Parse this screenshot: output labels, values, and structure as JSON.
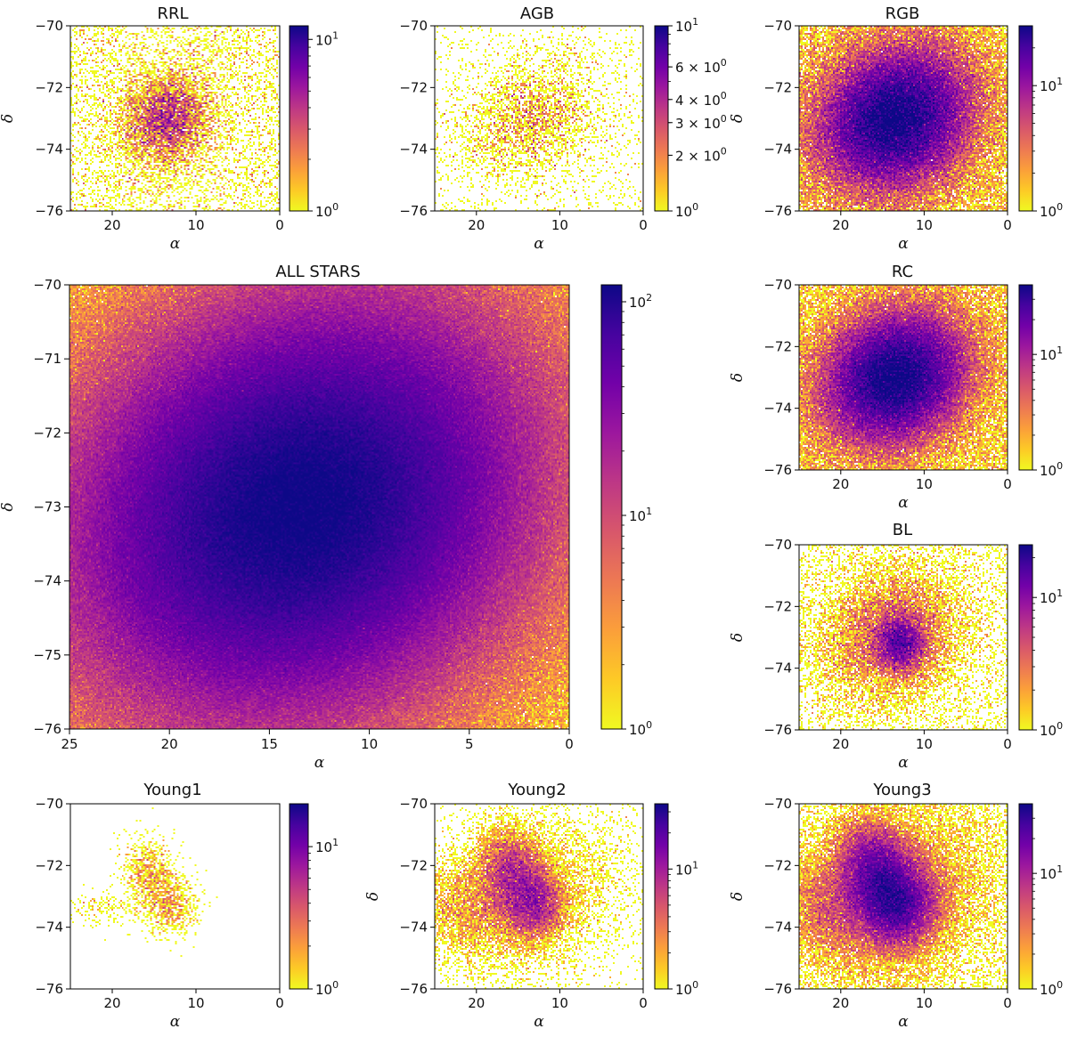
{
  "figure": {
    "xlabel": "α",
    "ylabel": "δ",
    "colormap": [
      "#0d0887",
      "#46039f",
      "#7201a8",
      "#9c179e",
      "#bd3786",
      "#d8576b",
      "#ed7953",
      "#fb9f3a",
      "#fdca26",
      "#f0f921"
    ]
  },
  "chart_data": [
    {
      "id": "rrl",
      "type": "heatmap",
      "title": "RRL",
      "xlim": [
        25,
        0
      ],
      "ylim": [
        -76,
        -70
      ],
      "xticks": [
        {
          "v": 20,
          "label": "20"
        },
        {
          "v": 10,
          "label": "10"
        },
        {
          "v": 0,
          "label": "0"
        }
      ],
      "yticks": [
        {
          "v": -70,
          "label": "−70"
        },
        {
          "v": -72,
          "label": "−72"
        },
        {
          "v": -74,
          "label": "−74"
        },
        {
          "v": -76,
          "label": "−76"
        }
      ],
      "show_ylabel": true,
      "colorbar": {
        "min": 1,
        "max": 12,
        "ticks": [
          {
            "v": 1,
            "label": "10",
            "exp": "0"
          },
          {
            "v": 10,
            "label": "10",
            "exp": "1"
          }
        ]
      },
      "density": {
        "components": [
          {
            "x": 13.5,
            "y": -73.0,
            "sx": 3.0,
            "sy": 0.8,
            "theta": -0.3,
            "amp": 4
          }
        ],
        "bg": 0.35,
        "max": 12
      }
    },
    {
      "id": "agb",
      "type": "heatmap",
      "title": "AGB",
      "xlim": [
        25,
        0
      ],
      "ylim": [
        -76,
        -70
      ],
      "xticks": [
        {
          "v": 20,
          "label": "20"
        },
        {
          "v": 10,
          "label": "10"
        },
        {
          "v": 0,
          "label": "0"
        }
      ],
      "yticks": [
        {
          "v": -70,
          "label": "−70"
        },
        {
          "v": -72,
          "label": "−72"
        },
        {
          "v": -74,
          "label": "−74"
        },
        {
          "v": -76,
          "label": "−76"
        }
      ],
      "show_ylabel": false,
      "colorbar": {
        "min": 1,
        "max": 10,
        "ticks": [
          {
            "v": 1,
            "label": "10",
            "exp": "0"
          },
          {
            "v": 2,
            "label": "2 × 10",
            "exp": "0"
          },
          {
            "v": 3,
            "label": "3 × 10",
            "exp": "0"
          },
          {
            "v": 4,
            "label": "4 × 10",
            "exp": "0"
          },
          {
            "v": 6,
            "label": "6 × 10",
            "exp": "0"
          },
          {
            "v": 10,
            "label": "10",
            "exp": "1"
          }
        ]
      },
      "density": {
        "components": [
          {
            "x": 13.5,
            "y": -73.0,
            "sx": 4.5,
            "sy": 1.0,
            "theta": -0.3,
            "amp": 1.2
          }
        ],
        "bg": 0.1,
        "max": 10
      }
    },
    {
      "id": "rgb",
      "type": "heatmap",
      "title": "RGB",
      "xlim": [
        25,
        0
      ],
      "ylim": [
        -76,
        -70
      ],
      "xticks": [
        {
          "v": 20,
          "label": "20"
        },
        {
          "v": 10,
          "label": "10"
        },
        {
          "v": 0,
          "label": "0"
        }
      ],
      "yticks": [
        {
          "v": -70,
          "label": "−70"
        },
        {
          "v": -72,
          "label": "−72"
        },
        {
          "v": -74,
          "label": "−74"
        },
        {
          "v": -76,
          "label": "−76"
        }
      ],
      "show_ylabel": true,
      "colorbar": {
        "min": 1,
        "max": 30,
        "ticks": [
          {
            "v": 1,
            "label": "10",
            "exp": "0"
          },
          {
            "v": 10,
            "label": "10",
            "exp": "1"
          }
        ]
      },
      "density": {
        "components": [
          {
            "x": 13.5,
            "y": -73.0,
            "sx": 5.0,
            "sy": 1.2,
            "theta": -0.3,
            "amp": 30
          }
        ],
        "bg": 1.4,
        "max": 30
      }
    },
    {
      "id": "all",
      "type": "heatmap",
      "title": "ALL STARS",
      "xlim": [
        25,
        0
      ],
      "ylim": [
        -76,
        -70
      ],
      "xticks": [
        {
          "v": 25,
          "label": "25"
        },
        {
          "v": 20,
          "label": "20"
        },
        {
          "v": 15,
          "label": "15"
        },
        {
          "v": 10,
          "label": "10"
        },
        {
          "v": 5,
          "label": "5"
        },
        {
          "v": 0,
          "label": "0"
        }
      ],
      "yticks": [
        {
          "v": -70,
          "label": "−70"
        },
        {
          "v": -71,
          "label": "−71"
        },
        {
          "v": -72,
          "label": "−72"
        },
        {
          "v": -73,
          "label": "−73"
        },
        {
          "v": -74,
          "label": "−74"
        },
        {
          "v": -75,
          "label": "−75"
        },
        {
          "v": -76,
          "label": "−76"
        }
      ],
      "show_ylabel": true,
      "colorbar": {
        "min": 1,
        "max": 120,
        "ticks": [
          {
            "v": 1,
            "label": "10",
            "exp": "0"
          },
          {
            "v": 10,
            "label": "10",
            "exp": "1"
          },
          {
            "v": 100,
            "label": "10",
            "exp": "2"
          }
        ]
      },
      "density": {
        "components": [
          {
            "x": 13.5,
            "y": -73.0,
            "sx": 6.0,
            "sy": 1.4,
            "theta": -0.3,
            "amp": 120
          }
        ],
        "bg": 2.0,
        "max": 120
      }
    },
    {
      "id": "rc",
      "type": "heatmap",
      "title": "RC",
      "xlim": [
        25,
        0
      ],
      "ylim": [
        -76,
        -70
      ],
      "xticks": [
        {
          "v": 20,
          "label": "20"
        },
        {
          "v": 10,
          "label": "10"
        },
        {
          "v": 0,
          "label": "0"
        }
      ],
      "yticks": [
        {
          "v": -70,
          "label": "−70"
        },
        {
          "v": -72,
          "label": "−72"
        },
        {
          "v": -74,
          "label": "−74"
        },
        {
          "v": -76,
          "label": "−76"
        }
      ],
      "show_ylabel": true,
      "colorbar": {
        "min": 1,
        "max": 40,
        "ticks": [
          {
            "v": 1,
            "label": "10",
            "exp": "0"
          },
          {
            "v": 10,
            "label": "10",
            "exp": "1"
          }
        ]
      },
      "density": {
        "components": [
          {
            "x": 13.5,
            "y": -73.0,
            "sx": 4.6,
            "sy": 1.1,
            "theta": -0.3,
            "amp": 40
          }
        ],
        "bg": 1.5,
        "max": 40
      }
    },
    {
      "id": "bl",
      "type": "heatmap",
      "title": "BL",
      "xlim": [
        25,
        0
      ],
      "ylim": [
        -76,
        -70
      ],
      "xticks": [
        {
          "v": 20,
          "label": "20"
        },
        {
          "v": 10,
          "label": "10"
        },
        {
          "v": 0,
          "label": "0"
        }
      ],
      "yticks": [
        {
          "v": -70,
          "label": "−70"
        },
        {
          "v": -72,
          "label": "−72"
        },
        {
          "v": -74,
          "label": "−74"
        },
        {
          "v": -76,
          "label": "−76"
        }
      ],
      "show_ylabel": true,
      "colorbar": {
        "min": 1,
        "max": 25,
        "ticks": [
          {
            "v": 1,
            "label": "10",
            "exp": "0"
          },
          {
            "v": 10,
            "label": "10",
            "exp": "1"
          }
        ]
      },
      "density": {
        "components": [
          {
            "x": 14.0,
            "y": -72.9,
            "sx": 4.5,
            "sy": 1.1,
            "theta": -0.3,
            "amp": 4
          },
          {
            "x": 12.8,
            "y": -73.2,
            "sx": 1.6,
            "sy": 0.5,
            "theta": -0.3,
            "amp": 12
          }
        ],
        "bg": 0.3,
        "max": 25
      }
    },
    {
      "id": "young1",
      "type": "heatmap",
      "title": "Young1",
      "xlim": [
        25,
        0
      ],
      "ylim": [
        -76,
        -70
      ],
      "xticks": [
        {
          "v": 20,
          "label": "20"
        },
        {
          "v": 10,
          "label": "10"
        },
        {
          "v": 0,
          "label": "0"
        }
      ],
      "yticks": [
        {
          "v": -70,
          "label": "−70"
        },
        {
          "v": -72,
          "label": "−72"
        },
        {
          "v": -74,
          "label": "−74"
        },
        {
          "v": -76,
          "label": "−76"
        }
      ],
      "show_ylabel": false,
      "colorbar": {
        "min": 1,
        "max": 20,
        "ticks": [
          {
            "v": 1,
            "label": "10",
            "exp": "0"
          },
          {
            "v": 10,
            "label": "10",
            "exp": "1"
          }
        ]
      },
      "density": {
        "components": [
          {
            "x": 15.5,
            "y": -72.3,
            "sx": 1.6,
            "sy": 0.6,
            "theta": -0.5,
            "amp": 1.8
          },
          {
            "x": 13.0,
            "y": -73.3,
            "sx": 1.7,
            "sy": 0.5,
            "theta": -0.3,
            "amp": 1.6
          },
          {
            "x": 21.0,
            "y": -73.4,
            "sx": 2.0,
            "sy": 0.3,
            "theta": 0,
            "amp": 0.6
          }
        ],
        "bg": 0.0,
        "max": 20
      }
    },
    {
      "id": "young2",
      "type": "heatmap",
      "title": "Young2",
      "xlim": [
        25,
        0
      ],
      "ylim": [
        -76,
        -70
      ],
      "xticks": [
        {
          "v": 20,
          "label": "20"
        },
        {
          "v": 10,
          "label": "10"
        },
        {
          "v": 0,
          "label": "0"
        }
      ],
      "yticks": [
        {
          "v": -70,
          "label": "−70"
        },
        {
          "v": -72,
          "label": "−72"
        },
        {
          "v": -74,
          "label": "−74"
        },
        {
          "v": -76,
          "label": "−76"
        }
      ],
      "show_ylabel": true,
      "colorbar": {
        "min": 1,
        "max": 35,
        "ticks": [
          {
            "v": 1,
            "label": "10",
            "exp": "0"
          },
          {
            "v": 10,
            "label": "10",
            "exp": "1"
          }
        ]
      },
      "density": {
        "components": [
          {
            "x": 15.5,
            "y": -72.3,
            "sx": 2.0,
            "sy": 0.8,
            "theta": -0.5,
            "amp": 8
          },
          {
            "x": 13.0,
            "y": -73.3,
            "sx": 2.0,
            "sy": 0.6,
            "theta": -0.3,
            "amp": 8
          },
          {
            "x": 20.5,
            "y": -73.3,
            "sx": 3.5,
            "sy": 0.8,
            "theta": 0,
            "amp": 2
          },
          {
            "x": 14.0,
            "y": -73.0,
            "sx": 6.0,
            "sy": 1.3,
            "theta": -0.3,
            "amp": 1.5
          }
        ],
        "bg": 0.05,
        "max": 35
      }
    },
    {
      "id": "young3",
      "type": "heatmap",
      "title": "Young3",
      "xlim": [
        25,
        0
      ],
      "ylim": [
        -76,
        -70
      ],
      "xticks": [
        {
          "v": 20,
          "label": "20"
        },
        {
          "v": 10,
          "label": "10"
        },
        {
          "v": 0,
          "label": "0"
        }
      ],
      "yticks": [
        {
          "v": -70,
          "label": "−70"
        },
        {
          "v": -72,
          "label": "−72"
        },
        {
          "v": -74,
          "label": "−74"
        },
        {
          "v": -76,
          "label": "−76"
        }
      ],
      "show_ylabel": true,
      "colorbar": {
        "min": 1,
        "max": 40,
        "ticks": [
          {
            "v": 1,
            "label": "10",
            "exp": "0"
          },
          {
            "v": 10,
            "label": "10",
            "exp": "1"
          }
        ]
      },
      "density": {
        "components": [
          {
            "x": 15.5,
            "y": -72.3,
            "sx": 2.3,
            "sy": 0.9,
            "theta": -0.5,
            "amp": 20
          },
          {
            "x": 13.0,
            "y": -73.3,
            "sx": 2.4,
            "sy": 0.7,
            "theta": -0.3,
            "amp": 20
          },
          {
            "x": 20.5,
            "y": -73.3,
            "sx": 3.5,
            "sy": 0.8,
            "theta": 0,
            "amp": 4
          },
          {
            "x": 14.0,
            "y": -73.0,
            "sx": 6.0,
            "sy": 1.4,
            "theta": -0.3,
            "amp": 4
          }
        ],
        "bg": 0.4,
        "max": 40
      }
    }
  ]
}
